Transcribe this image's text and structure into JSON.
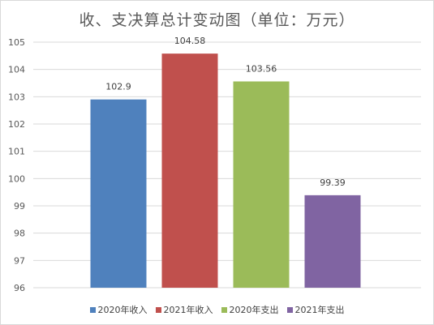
{
  "chart_data": {
    "type": "bar",
    "title": "收、支决算总计变动图（单位：万元）",
    "categories": [
      "2020年收入",
      "2021年收入",
      "2020年支出",
      "2021年支出"
    ],
    "values": [
      102.9,
      104.58,
      103.56,
      99.39
    ],
    "data_labels": [
      "102.9",
      "104.58",
      "103.56",
      "99.39"
    ],
    "colors": [
      "#4f81bd",
      "#c0504d",
      "#9bbb59",
      "#8064a2"
    ],
    "ylim": [
      96,
      105
    ],
    "yticks": [
      "96",
      "97",
      "98",
      "99",
      "100",
      "101",
      "102",
      "103",
      "104",
      "105"
    ],
    "grid": true,
    "legend_position": "bottom",
    "xlabel": "",
    "ylabel": ""
  }
}
